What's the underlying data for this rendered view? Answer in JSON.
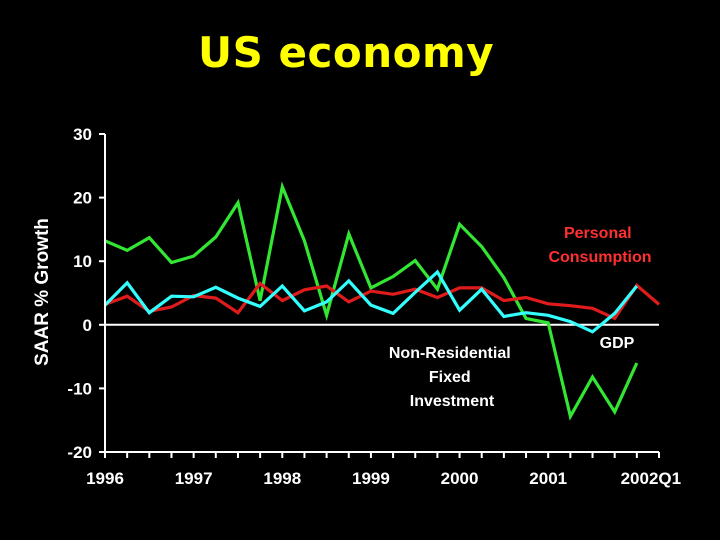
{
  "slide": {
    "title": "US economy"
  },
  "colors": {
    "background": "#000000",
    "title": "#ffff00",
    "axis": "#ffffff",
    "gdp": "#33ffff",
    "consumption": "#e01b1b",
    "investment": "#33e633",
    "label_consumption": "#ff3030",
    "label_investment": "#ffffff",
    "label_gdp": "#ffffff"
  },
  "chart_data": {
    "type": "line",
    "title": "",
    "xlabel": "",
    "ylabel": "SAAR % Growth",
    "ylim": [
      -20,
      30
    ],
    "yticks": [
      30,
      20,
      10,
      0,
      -10,
      -20
    ],
    "xlim": [
      0,
      25
    ],
    "xticks": [
      {
        "label": "1996",
        "pos": 0
      },
      {
        "label": "1997",
        "pos": 4
      },
      {
        "label": "1998",
        "pos": 8
      },
      {
        "label": "1999",
        "pos": 12
      },
      {
        "label": "2000",
        "pos": 16
      },
      {
        "label": "2001",
        "pos": 20
      },
      {
        "label": "2002Q1",
        "pos": 24
      }
    ],
    "x": [
      0,
      1,
      2,
      3,
      4,
      5,
      6,
      7,
      8,
      9,
      10,
      11,
      12,
      13,
      14,
      15,
      16,
      17,
      18,
      19,
      20,
      21,
      22,
      23,
      24,
      25
    ],
    "series": [
      {
        "name": "Non-Residential Fixed Investment",
        "color_key": "investment",
        "values": [
          13.2,
          11.7,
          13.7,
          9.8,
          10.8,
          13.8,
          19.2,
          3.8,
          21.7,
          13.2,
          1.5,
          14.3,
          5.8,
          7.6,
          10.1,
          5.6,
          15.8,
          12.3,
          7.4,
          1.0,
          0.3,
          -14.4,
          -8.2,
          -13.7,
          -6.0,
          null
        ]
      },
      {
        "name": "Personal Consumption",
        "color_key": "consumption",
        "values": [
          3.2,
          4.5,
          2.1,
          2.8,
          4.6,
          4.2,
          1.9,
          6.5,
          3.8,
          5.5,
          6.1,
          3.6,
          5.3,
          4.8,
          5.6,
          4.3,
          5.8,
          5.8,
          3.8,
          4.3,
          3.3,
          3.0,
          2.6,
          1.0,
          6.2,
          3.2
        ]
      },
      {
        "name": "GDP",
        "color_key": "gdp",
        "values": [
          3.1,
          6.6,
          1.9,
          4.5,
          4.4,
          5.9,
          4.2,
          2.9,
          6.1,
          2.2,
          3.6,
          6.9,
          3.1,
          1.8,
          5.1,
          8.3,
          2.3,
          5.6,
          1.3,
          1.9,
          1.5,
          0.5,
          -1.1,
          1.8,
          6.1,
          null
        ]
      }
    ],
    "annotations": [
      {
        "lines": [
          "Personal",
          "Consumption"
        ],
        "series": "consumption"
      },
      {
        "lines": [
          "GDP"
        ],
        "series": "gdp"
      },
      {
        "lines": [
          "Non-Residential",
          "Fixed",
          "Investment"
        ],
        "series": "investment"
      }
    ]
  }
}
